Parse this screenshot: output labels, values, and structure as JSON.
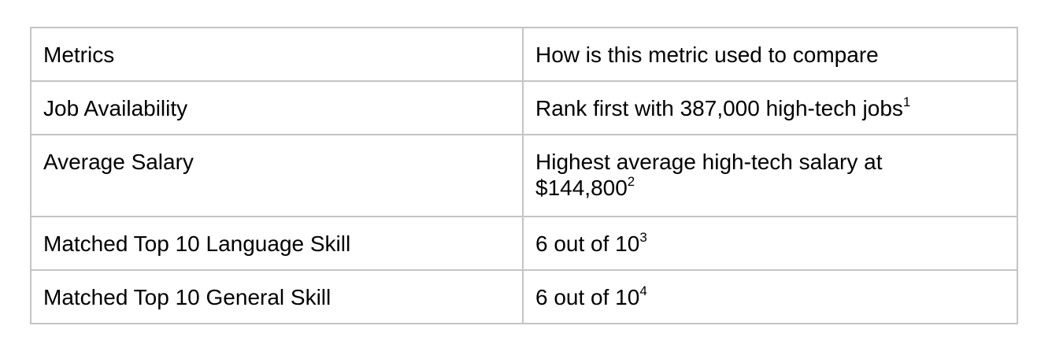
{
  "table": {
    "rows": [
      {
        "metric": "Metrics",
        "usage": "How is this metric used to compare",
        "note": ""
      },
      {
        "metric": "Job Availability",
        "usage": "Rank first with 387,000 high-tech jobs",
        "note": "1"
      },
      {
        "metric": "Average Salary",
        "usage_line1": "Highest average high-tech salary at",
        "usage": "$144,800",
        "note": "2"
      },
      {
        "metric": "Matched Top 10 Language Skill",
        "usage": "6 out of 10",
        "note": "3"
      },
      {
        "metric": "Matched Top 10 General Skill",
        "usage": "6 out of 10",
        "note": "4"
      }
    ]
  },
  "colors": {
    "border": "#c4c4c4",
    "text": "#000000",
    "background": "#ffffff"
  }
}
